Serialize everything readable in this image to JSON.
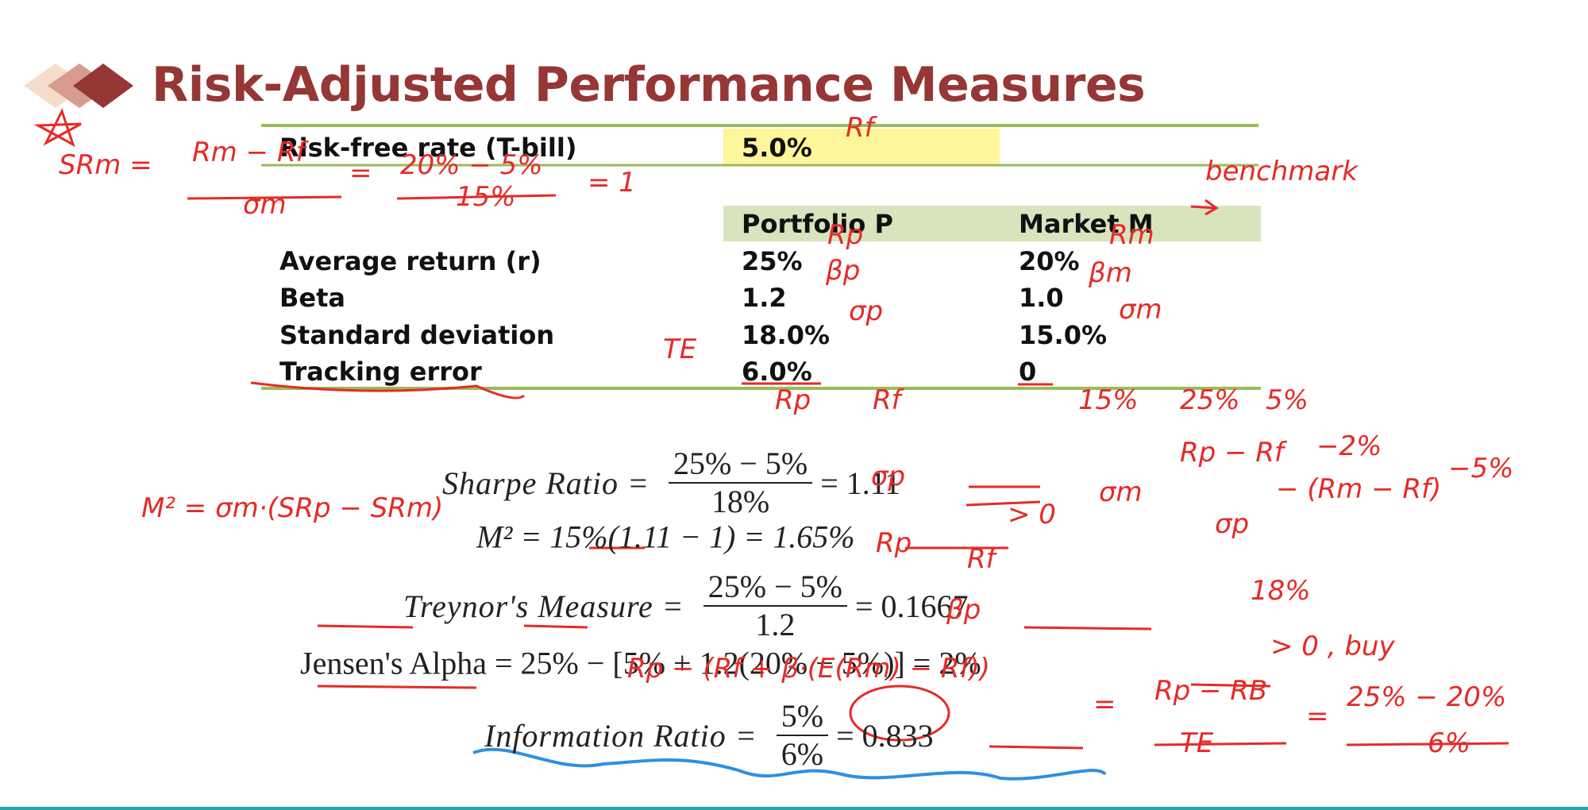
{
  "title": "Risk-Adjusted Performance Measures",
  "table": {
    "risk_free": {
      "label": "Risk-free rate (T-bill)",
      "value": "5.0%"
    },
    "headers": [
      "Portfolio P",
      "Market M"
    ],
    "rows": [
      [
        "Average return (r)",
        "25%",
        "20%"
      ],
      [
        "Beta",
        "1.2",
        "1.0"
      ],
      [
        "Standard deviation",
        "18.0%",
        "15.0%"
      ],
      [
        "Tracking error",
        "6.0%",
        "0"
      ]
    ]
  },
  "formulas": [
    {
      "label": "Sharpe Ratio =",
      "numerator": "25% − 5%",
      "denominator": "18%",
      "result": "= 1.11"
    },
    {
      "expression": "M² = 15%(1.11 − 1) = 1.65%"
    },
    {
      "label": "Treynor's Measure =",
      "numerator": "25% − 5%",
      "denominator": "1.2",
      "result": "= 0.1667"
    },
    {
      "expression": "Jensen's Alpha = 25% − [5% + 1.2(20% − 5%)] = 2%"
    },
    {
      "label": "Information Ratio =",
      "numerator": "5%",
      "denominator": "6%",
      "result": "= 0.833"
    }
  ],
  "annotations": [
    "Rf",
    "SRm =",
    "Rm − Rf",
    "σm",
    "=",
    "20% − 5%",
    "15%",
    "= 1",
    "benchmark",
    "Rp",
    "Rm",
    "βp",
    "βm",
    "σp",
    "σm",
    "TE",
    "Rp",
    "Rf",
    "σp",
    "> 0",
    "M² = σm·(SRp − SRm)",
    "15%",
    "25%",
    "5%",
    "σm",
    "Rp − Rf",
    "σp",
    "− (Rm − Rf)",
    "−2%",
    "−5%",
    "18%",
    "Rp",
    "Rf",
    "βp",
    "> 0 , buy",
    "Rp − (Rf + β·(E(Rm) − Rf))",
    "=",
    "Rp − RB",
    "TE",
    "=",
    "25% − 20%",
    "6%"
  ]
}
